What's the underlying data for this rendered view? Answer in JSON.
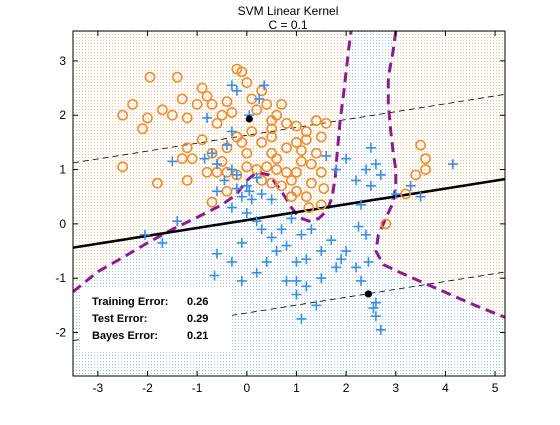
{
  "chart_data": {
    "type": "scatter",
    "title": "SVM Linear Kernel",
    "subtitle": "C = 0.1",
    "xlim": [
      -3.5,
      5.2
    ],
    "ylim": [
      -2.8,
      3.55
    ],
    "x_ticks": [
      -3,
      -2,
      -1,
      0,
      1,
      2,
      3,
      4,
      5
    ],
    "y_ticks": [
      -2,
      -1,
      0,
      1,
      2,
      3
    ],
    "grid": false,
    "colors": {
      "class_orange": "#f28c28",
      "class_blue": "#3a8ee6",
      "region_orange": "#fbe6cf",
      "region_blue": "#dcebf5",
      "bayes_boundary": "#8e1b8e",
      "svm_boundary": "#000000"
    },
    "decision_boundary": {
      "slope": 0.145,
      "intercept": 0.07
    },
    "margins": [
      {
        "slope": 0.145,
        "intercept": 1.63
      },
      {
        "slope": 0.145,
        "intercept": -1.64
      }
    ],
    "support_points": [
      {
        "x": 0.05,
        "y": 1.93
      },
      {
        "x": 2.45,
        "y": -1.29
      }
    ],
    "bayes_boundary_branches": [
      [
        [
          -3.5,
          -1.25
        ],
        [
          -3.0,
          -0.88
        ],
        [
          -2.5,
          -0.62
        ],
        [
          -2.0,
          -0.35
        ],
        [
          -1.5,
          -0.1
        ],
        [
          -1.0,
          0.12
        ],
        [
          -0.5,
          0.35
        ],
        [
          -0.2,
          0.55
        ],
        [
          0.0,
          0.8
        ],
        [
          0.2,
          0.95
        ],
        [
          0.45,
          0.9
        ],
        [
          0.7,
          0.6
        ],
        [
          0.9,
          0.3
        ],
        [
          1.05,
          0.12
        ],
        [
          1.25,
          0.05
        ],
        [
          1.45,
          0.1
        ],
        [
          1.62,
          0.25
        ],
        [
          1.72,
          0.5
        ],
        [
          1.78,
          0.85
        ],
        [
          1.82,
          1.3
        ],
        [
          1.88,
          1.9
        ],
        [
          1.95,
          2.4
        ],
        [
          2.0,
          2.8
        ],
        [
          2.05,
          3.2
        ],
        [
          2.1,
          3.55
        ]
      ],
      [
        [
          3.0,
          3.55
        ],
        [
          2.95,
          3.2
        ],
        [
          2.85,
          2.7
        ],
        [
          2.85,
          2.2
        ],
        [
          2.9,
          1.7
        ],
        [
          2.95,
          1.3
        ],
        [
          3.0,
          1.0
        ],
        [
          3.0,
          0.7
        ],
        [
          2.95,
          0.4
        ],
        [
          2.8,
          0.1
        ],
        [
          2.65,
          -0.2
        ],
        [
          2.6,
          -0.5
        ],
        [
          2.75,
          -0.75
        ],
        [
          3.1,
          -0.9
        ],
        [
          3.6,
          -1.1
        ],
        [
          4.1,
          -1.3
        ],
        [
          4.6,
          -1.5
        ],
        [
          5.2,
          -1.72
        ]
      ]
    ],
    "series": [
      {
        "marker": "circle",
        "points": [
          [
            -2.5,
            2.0
          ],
          [
            -2.3,
            2.2
          ],
          [
            -2.1,
            1.75
          ],
          [
            -2.0,
            1.95
          ],
          [
            -1.95,
            2.7
          ],
          [
            -1.7,
            2.1
          ],
          [
            -1.5,
            2.0
          ],
          [
            -1.4,
            2.7
          ],
          [
            -1.3,
            2.3
          ],
          [
            -1.2,
            1.95
          ],
          [
            -1.0,
            2.2
          ],
          [
            -0.9,
            2.5
          ],
          [
            -0.8,
            2.35
          ],
          [
            -0.7,
            2.2
          ],
          [
            -0.6,
            1.85
          ],
          [
            -0.5,
            2.0
          ],
          [
            -0.4,
            2.25
          ],
          [
            -0.3,
            2.05
          ],
          [
            -0.2,
            2.85
          ],
          [
            -0.1,
            2.8
          ],
          [
            0.0,
            2.6
          ],
          [
            0.1,
            2.3
          ],
          [
            0.2,
            2.1
          ],
          [
            0.3,
            2.45
          ],
          [
            0.4,
            2.2
          ],
          [
            0.5,
            1.9
          ],
          [
            0.6,
            2.0
          ],
          [
            0.7,
            2.2
          ],
          [
            0.8,
            1.85
          ],
          [
            1.0,
            1.8
          ],
          [
            1.2,
            1.7
          ],
          [
            1.4,
            1.9
          ],
          [
            1.6,
            1.85
          ],
          [
            -1.2,
            1.4
          ],
          [
            -0.9,
            1.55
          ],
          [
            -0.7,
            1.3
          ],
          [
            -0.5,
            1.15
          ],
          [
            -0.4,
            1.4
          ],
          [
            -0.2,
            1.6
          ],
          [
            -0.1,
            1.5
          ],
          [
            0.0,
            1.3
          ],
          [
            0.1,
            1.7
          ],
          [
            0.3,
            1.5
          ],
          [
            0.5,
            1.3
          ],
          [
            0.5,
            1.6
          ],
          [
            0.6,
            1.2
          ],
          [
            0.8,
            1.4
          ],
          [
            1.0,
            1.5
          ],
          [
            1.2,
            1.55
          ],
          [
            1.4,
            1.3
          ],
          [
            1.5,
            1.6
          ],
          [
            -1.3,
            1.2
          ],
          [
            -1.1,
            1.2
          ],
          [
            -0.8,
            0.95
          ],
          [
            -0.6,
            0.95
          ],
          [
            -0.4,
            0.95
          ],
          [
            -0.2,
            0.9
          ],
          [
            0.0,
            1.05
          ],
          [
            0.2,
            1.0
          ],
          [
            0.4,
            1.05
          ],
          [
            0.6,
            1.0
          ],
          [
            0.8,
            0.95
          ],
          [
            1.0,
            0.95
          ],
          [
            1.1,
            1.15
          ],
          [
            1.3,
            1.1
          ],
          [
            1.5,
            0.95
          ],
          [
            0.3,
            0.8
          ],
          [
            0.5,
            0.75
          ],
          [
            0.7,
            0.7
          ],
          [
            0.9,
            0.8
          ],
          [
            1.0,
            0.6
          ],
          [
            1.2,
            0.5
          ],
          [
            1.3,
            0.75
          ],
          [
            1.1,
            1.35
          ],
          [
            1.25,
            0.3
          ],
          [
            1.5,
            0.35
          ],
          [
            0.9,
            0.5
          ],
          [
            1.55,
            0.65
          ],
          [
            -1.2,
            0.8
          ],
          [
            -2.5,
            1.05
          ],
          [
            -1.8,
            0.75
          ],
          [
            -0.7,
            0.4
          ],
          [
            -0.4,
            0.6
          ],
          [
            3.6,
            1.2
          ],
          [
            3.5,
            1.45
          ],
          [
            3.6,
            1.0
          ],
          [
            3.4,
            0.9
          ],
          [
            3.2,
            0.55
          ],
          [
            2.8,
            0.0
          ],
          [
            0.5,
            1.75
          ]
        ]
      },
      {
        "marker": "plus",
        "points": [
          [
            -0.2,
            2.45
          ],
          [
            -0.3,
            2.55
          ],
          [
            0.05,
            2.0
          ],
          [
            0.25,
            2.3
          ],
          [
            -0.8,
            1.95
          ],
          [
            -0.3,
            1.7
          ],
          [
            -0.4,
            1.45
          ],
          [
            -0.7,
            1.3
          ],
          [
            -0.85,
            1.2
          ],
          [
            -0.6,
            1.1
          ],
          [
            -0.3,
            1.0
          ],
          [
            -0.2,
            0.9
          ],
          [
            -0.45,
            0.8
          ],
          [
            -0.6,
            0.6
          ],
          [
            -0.2,
            0.65
          ],
          [
            0.0,
            0.7
          ],
          [
            0.2,
            0.85
          ],
          [
            -0.1,
            0.5
          ],
          [
            0.1,
            0.45
          ],
          [
            0.3,
            0.55
          ],
          [
            0.5,
            0.45
          ],
          [
            -0.3,
            0.3
          ],
          [
            0.0,
            0.2
          ],
          [
            0.2,
            0.05
          ],
          [
            0.3,
            -0.1
          ],
          [
            0.5,
            -0.25
          ],
          [
            0.7,
            -0.1
          ],
          [
            0.9,
            0.1
          ],
          [
            1.1,
            -0.2
          ],
          [
            1.3,
            -0.1
          ],
          [
            0.6,
            -0.5
          ],
          [
            0.8,
            -0.4
          ],
          [
            1.0,
            -0.7
          ],
          [
            0.4,
            -0.7
          ],
          [
            0.2,
            -0.9
          ],
          [
            -0.1,
            -0.35
          ],
          [
            -0.3,
            -0.7
          ],
          [
            -0.1,
            -1.05
          ],
          [
            -0.6,
            -0.55
          ],
          [
            -0.65,
            -0.95
          ],
          [
            1.0,
            -1.05
          ],
          [
            1.2,
            -0.65
          ],
          [
            1.5,
            -0.5
          ],
          [
            1.7,
            -0.3
          ],
          [
            2.0,
            -0.5
          ],
          [
            2.2,
            -0.8
          ],
          [
            1.8,
            -0.8
          ],
          [
            1.5,
            -1.0
          ],
          [
            1.2,
            -1.15
          ],
          [
            1.0,
            -1.3
          ],
          [
            0.8,
            -1.05
          ],
          [
            1.1,
            -1.75
          ],
          [
            1.4,
            -1.5
          ],
          [
            2.3,
            -1.05
          ],
          [
            2.45,
            -0.7
          ],
          [
            2.6,
            -1.45
          ],
          [
            2.55,
            -1.55
          ],
          [
            2.7,
            -1.95
          ],
          [
            2.4,
            -0.2
          ],
          [
            2.3,
            0.35
          ],
          [
            2.5,
            0.7
          ],
          [
            2.7,
            0.9
          ],
          [
            2.4,
            1.0
          ],
          [
            2.2,
            0.8
          ],
          [
            2.5,
            1.4
          ],
          [
            2.6,
            1.1
          ],
          [
            2.0,
            1.2
          ],
          [
            1.8,
            1.0
          ],
          [
            1.6,
            1.25
          ],
          [
            3.0,
            0.55
          ],
          [
            3.3,
            0.7
          ],
          [
            3.5,
            0.5
          ],
          [
            4.15,
            1.1
          ],
          [
            2.6,
            -1.7
          ],
          [
            1.9,
            -0.65
          ],
          [
            -1.5,
            1.15
          ],
          [
            -1.4,
            0.05
          ],
          [
            -1.7,
            -0.35
          ],
          [
            -2.05,
            -0.2
          ],
          [
            2.25,
            -0.05
          ],
          [
            0.35,
            2.55
          ],
          [
            0.05,
            0.6
          ]
        ]
      }
    ],
    "annotations": [
      {
        "label": "Training Error:",
        "value": "0.26"
      },
      {
        "label": "Test Error:",
        "value": "0.29"
      },
      {
        "label": "Bayes Error:",
        "value": "0.21"
      }
    ]
  }
}
